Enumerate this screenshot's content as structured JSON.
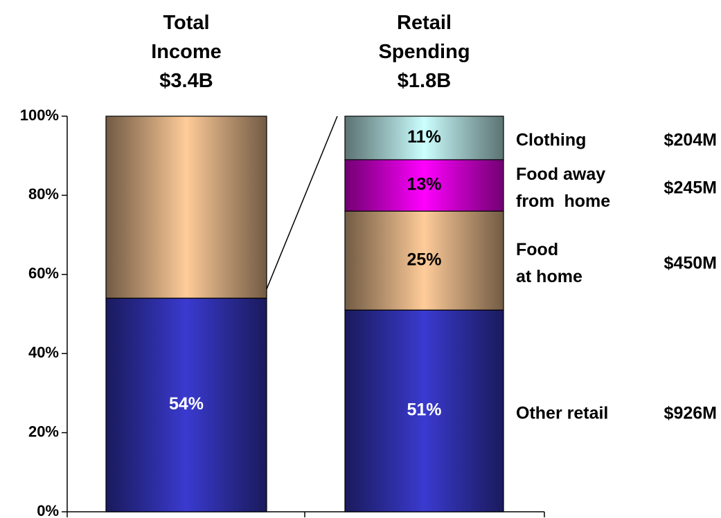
{
  "chart_data": {
    "type": "stacked_bar",
    "categories": [
      "Total\nIncome\n$3.4B",
      "Retail\nSpending\n$1.8B"
    ],
    "ylim": [
      0,
      100
    ],
    "yticks": [
      {
        "value": 0,
        "label": "0%"
      },
      {
        "value": 20,
        "label": "20%"
      },
      {
        "value": 40,
        "label": "40%"
      },
      {
        "value": 60,
        "label": "60%"
      },
      {
        "value": 80,
        "label": "80%"
      },
      {
        "value": 100,
        "label": "100%"
      }
    ],
    "series": [
      {
        "name": "Other retail",
        "amount": "$926M",
        "color": "#3a3ad0",
        "label_color": "#ffffff",
        "values": [
          54,
          51
        ],
        "value_labels": [
          "54%",
          "51%"
        ]
      },
      {
        "color": "#ffcc99",
        "values": [
          46,
          null
        ]
      },
      {
        "name": "Food\nat home",
        "amount": "$450M",
        "color": "#ffcc99",
        "label_color": "#000000",
        "values": [
          null,
          25
        ],
        "value_labels": [
          null,
          "25%"
        ]
      },
      {
        "name": "Food away\nfrom  home",
        "amount": "$245M",
        "color": "#ff00ff",
        "label_color": "#000000",
        "values": [
          null,
          13
        ],
        "value_labels": [
          null,
          "13%"
        ]
      },
      {
        "name": "Clothing",
        "amount": "$204M",
        "color": "#ccffff",
        "label_color": "#000000",
        "values": [
          null,
          11
        ],
        "value_labels": [
          null,
          "11%"
        ]
      }
    ]
  }
}
